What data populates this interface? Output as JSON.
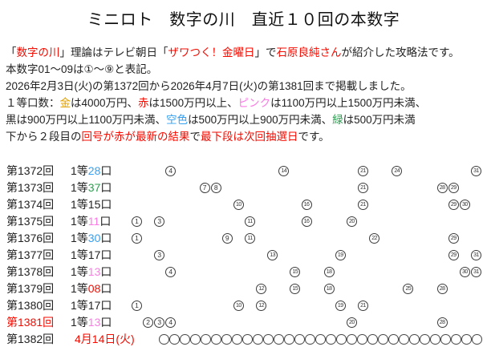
{
  "palette": {
    "red": "#f40b00",
    "pink": "#fb7be4",
    "sky": "#33a0f2",
    "green": "#28a04e",
    "gold": "#e2a000",
    "text": "#222222"
  },
  "title": "ミニロト　数字の川　直近１０回の本数字",
  "intro": {
    "lines": [
      [
        {
          "t": "「"
        },
        {
          "t": "数字の川",
          "c": "red"
        },
        {
          "t": "」理論はテレビ朝日「"
        },
        {
          "t": "ザワつく！金曜日",
          "c": "red"
        },
        {
          "t": "」で"
        },
        {
          "t": "石原良純さん",
          "c": "red"
        },
        {
          "t": "が紹介した攻略法です。"
        }
      ],
      [
        {
          "t": "本数字01〜09は①〜⑨と表記。"
        }
      ],
      [
        {
          "t": "2026年2月3日(火)の第1372回から2026年4月7日(火)の第1381回まで掲載しました。"
        }
      ],
      [
        {
          "t": "１等口数："
        },
        {
          "t": "金",
          "c": "gold"
        },
        {
          "t": "は4000万円、"
        },
        {
          "t": "赤",
          "c": "red"
        },
        {
          "t": "は1500万円以上、"
        },
        {
          "t": "ピンク",
          "c": "pink"
        },
        {
          "t": "は1100万円以上1500万円未満、"
        }
      ],
      [
        {
          "t": "黒は900万円以上1100万円未満、"
        },
        {
          "t": "空色",
          "c": "sky"
        },
        {
          "t": "は500万円以上900万円未満、"
        },
        {
          "t": "緑",
          "c": "green"
        },
        {
          "t": "は500万円未満"
        }
      ],
      [
        {
          "t": "下から２段目の"
        },
        {
          "t": "回号が赤が最新の結果",
          "c": "red"
        },
        {
          "t": "で"
        },
        {
          "t": "最下段は次回抽選日",
          "c": "red"
        },
        {
          "t": "です。"
        }
      ]
    ]
  },
  "table": {
    "rows": [
      {
        "round": "第1372回",
        "prize_prefix": "1等",
        "count": "28",
        "count_color": "sky",
        "unit": "口",
        "numbers": [
          4,
          14,
          21,
          24,
          31
        ]
      },
      {
        "round": "第1373回",
        "prize_prefix": "1等",
        "count": "37",
        "count_color": "green",
        "unit": "口",
        "numbers": [
          7,
          8,
          21,
          28,
          29
        ]
      },
      {
        "round": "第1374回",
        "prize_prefix": "1等",
        "count": "15",
        "count_color": "text",
        "unit": "口",
        "numbers": [
          10,
          16,
          21,
          29,
          30
        ]
      },
      {
        "round": "第1375回",
        "prize_prefix": "1等",
        "count": "11",
        "count_color": "pink",
        "unit": "口",
        "numbers": [
          1,
          3,
          11,
          16,
          20
        ]
      },
      {
        "round": "第1376回",
        "prize_prefix": "1等",
        "count": "30",
        "count_color": "sky",
        "unit": "口",
        "numbers": [
          1,
          9,
          11,
          22,
          29
        ]
      },
      {
        "round": "第1377回",
        "prize_prefix": "1等",
        "count": "17",
        "count_color": "text",
        "unit": "口",
        "numbers": [
          3,
          13,
          19,
          29,
          31
        ]
      },
      {
        "round": "第1378回",
        "prize_prefix": "1等",
        "count": "13",
        "count_color": "pink",
        "unit": "口",
        "numbers": [
          4,
          15,
          18,
          30,
          31
        ]
      },
      {
        "round": "第1379回",
        "prize_prefix": "1等",
        "count": "08",
        "count_color": "red",
        "unit": "口",
        "numbers": [
          12,
          15,
          18,
          25,
          28
        ]
      },
      {
        "round": "第1380回",
        "prize_prefix": "1等",
        "count": "17",
        "count_color": "text",
        "unit": "口",
        "numbers": [
          1,
          10,
          12,
          19,
          21
        ]
      },
      {
        "round": "第1381回",
        "round_color": "red",
        "prize_prefix": "1等",
        "count": "13",
        "count_color": "pink",
        "unit": "口",
        "numbers": [
          2,
          3,
          4,
          20,
          28
        ]
      }
    ],
    "next_row": {
      "round": "第1382回",
      "date": "4月14日(火)",
      "date_color": "red",
      "empty_circle_count": 31
    }
  }
}
